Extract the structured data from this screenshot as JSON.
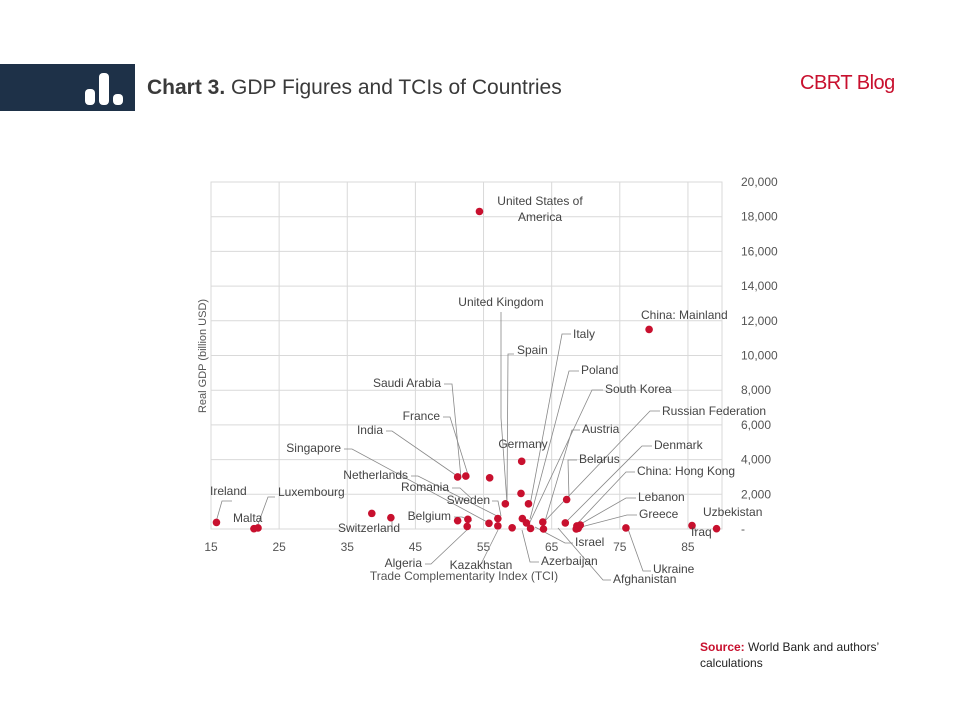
{
  "header": {
    "chart_number": "Chart 3.",
    "title": "GDP Figures and TCIs of Countries",
    "icon": "bar-chart-icon",
    "band_color": "#1e3148"
  },
  "brand": {
    "name": "CBRT Blog",
    "color": "#c8102e"
  },
  "source": {
    "label": "Source:",
    "text": "World Bank and authors’ calculations"
  },
  "chart_data": {
    "type": "scatter",
    "title": "",
    "xlabel": "Trade Complementarity Index (TCI)",
    "ylabel": "Real GDP (billion USD)",
    "xlim": [
      15,
      90
    ],
    "ylim": [
      0,
      20000
    ],
    "x_ticks": [
      "15",
      "25",
      "35",
      "45",
      "55",
      "65",
      "75",
      "85"
    ],
    "y_ticks": [
      "-",
      "2,000",
      "4,000",
      "6,000",
      "8,000",
      "10,000",
      "12,000",
      "14,000",
      "16,000",
      "18,000",
      "20,000"
    ],
    "marker_color": "#c8102e",
    "grid": true,
    "y_axis_side": "right",
    "points": [
      {
        "label": "Ireland",
        "x": 15.8,
        "y": 380
      },
      {
        "label": "Malta",
        "x": 21.3,
        "y": 20
      },
      {
        "label": "Luxembourg",
        "x": 21.9,
        "y": 60
      },
      {
        "label": "Netherlands",
        "x": 38.6,
        "y": 900
      },
      {
        "label": "Switzerland",
        "x": 41.4,
        "y": 650
      },
      {
        "label": "Belgium",
        "x": 51.2,
        "y": 480
      },
      {
        "label": "Saudi Arabia",
        "x": 51.2,
        "y": 3000
      },
      {
        "label": "India",
        "x": 52.4,
        "y": 3050
      },
      {
        "label": "Sweden",
        "x": 52.7,
        "y": 560
      },
      {
        "label": "Algeria",
        "x": 52.6,
        "y": 150
      },
      {
        "label": "United States of America",
        "x": 54.4,
        "y": 18300
      },
      {
        "label": "France",
        "x": 55.9,
        "y": 2950
      },
      {
        "label": "Singapore",
        "x": 55.8,
        "y": 330
      },
      {
        "label": "Kazakhstan",
        "x": 57.1,
        "y": 180
      },
      {
        "label": "Romania",
        "x": 57.1,
        "y": 600
      },
      {
        "label": "United Kingdom",
        "x": 58.2,
        "y": 1450
      },
      {
        "label": "Germany",
        "x": 60.6,
        "y": 3900
      },
      {
        "label": "Spain",
        "x": 60.5,
        "y": 2050
      },
      {
        "label": "Italy",
        "x": 61.6,
        "y": 1450
      },
      {
        "label": "Poland",
        "x": 60.7,
        "y": 600
      },
      {
        "label": "South Korea",
        "x": 61.3,
        "y": 350
      },
      {
        "label": "Israel",
        "x": 59.2,
        "y": 70
      },
      {
        "label": "Azerbaijan",
        "x": 61.9,
        "y": 30
      },
      {
        "label": "Russian Federation",
        "x": 63.7,
        "y": 400
      },
      {
        "label": "Austria",
        "x": 63.8,
        "y": 0
      },
      {
        "label": "Belarus",
        "x": 67.2,
        "y": 1700
      },
      {
        "label": "China: Mainland",
        "x": 79.3,
        "y": 11500
      },
      {
        "label": "Denmark",
        "x": 67.0,
        "y": 350
      },
      {
        "label": "China: Hong Kong",
        "x": 68.7,
        "y": 180
      },
      {
        "label": "Lebanon",
        "x": 69.2,
        "y": 230
      },
      {
        "label": "Greece",
        "x": 68.9,
        "y": 40
      },
      {
        "label": "Ukraine",
        "x": 75.9,
        "y": 60
      },
      {
        "label": "Afghanistan",
        "x": 68.6,
        "y": 0
      },
      {
        "label": "Iraq",
        "x": 85.6,
        "y": 200
      },
      {
        "label": "Uzbekistan",
        "x": 89.2,
        "y": 20
      }
    ],
    "annotations": [
      {
        "label": "Ireland",
        "lx": 210,
        "ly": 495,
        "anchor": "start",
        "pts": [
          [
            232,
            501
          ],
          [
            222,
            501
          ],
          [
            216,
            522
          ]
        ]
      },
      {
        "label": "Malta",
        "lx": 233,
        "ly": 522,
        "anchor": "start",
        "pts": []
      },
      {
        "label": "Luxembourg",
        "lx": 278,
        "ly": 496,
        "anchor": "start",
        "pts": [
          [
            275,
            497
          ],
          [
            268,
            497
          ],
          [
            257,
            527
          ]
        ]
      },
      {
        "label": "United States of",
        "lx": 540,
        "ly": 205,
        "anchor": "middle",
        "pts": []
      },
      {
        "label": "America",
        "lx": 540,
        "ly": 221,
        "anchor": "middle",
        "pts": []
      },
      {
        "label": "United Kingdom",
        "lx": 501,
        "ly": 306,
        "anchor": "middle",
        "pts": [
          [
            501,
            312
          ],
          [
            501,
            418
          ],
          [
            507,
            503
          ]
        ]
      },
      {
        "label": "China: Mainland",
        "lx": 641,
        "ly": 319,
        "anchor": "start",
        "pts": []
      },
      {
        "label": "Italy",
        "lx": 573,
        "ly": 338,
        "anchor": "start",
        "pts": [
          [
            571,
            334
          ],
          [
            562,
            334
          ],
          [
            530,
            505
          ]
        ]
      },
      {
        "label": "Spain",
        "lx": 517,
        "ly": 354,
        "anchor": "start",
        "pts": [
          [
            514,
            354
          ],
          [
            508,
            354
          ],
          [
            507,
            500
          ]
        ]
      },
      {
        "label": "Poland",
        "lx": 581,
        "ly": 374,
        "anchor": "start",
        "pts": [
          [
            579,
            371
          ],
          [
            569,
            371
          ],
          [
            530,
            519
          ]
        ]
      },
      {
        "label": "Saudi Arabia",
        "lx": 441,
        "ly": 387,
        "anchor": "end",
        "pts": [
          [
            444,
            384
          ],
          [
            452,
            384
          ],
          [
            461,
            478
          ]
        ]
      },
      {
        "label": "South Korea",
        "lx": 605,
        "ly": 393,
        "anchor": "start",
        "pts": [
          [
            603,
            390
          ],
          [
            592,
            390
          ],
          [
            530,
            522
          ]
        ]
      },
      {
        "label": "Russian Federation",
        "lx": 662,
        "ly": 415,
        "anchor": "start",
        "pts": [
          [
            660,
            411
          ],
          [
            650,
            411
          ],
          [
            543,
            523
          ]
        ]
      },
      {
        "label": "France",
        "lx": 440,
        "ly": 420,
        "anchor": "end",
        "pts": [
          [
            443,
            417
          ],
          [
            450,
            417
          ],
          [
            469,
            478
          ]
        ]
      },
      {
        "label": "India",
        "lx": 383,
        "ly": 434,
        "anchor": "end",
        "pts": [
          [
            386,
            431
          ],
          [
            392,
            431
          ],
          [
            460,
            478
          ]
        ]
      },
      {
        "label": "Austria",
        "lx": 582,
        "ly": 433,
        "anchor": "start",
        "pts": [
          [
            580,
            430
          ],
          [
            572,
            430
          ],
          [
            543,
            528
          ]
        ]
      },
      {
        "label": "Germany",
        "lx": 523,
        "ly": 448,
        "anchor": "middle",
        "pts": []
      },
      {
        "label": "Denmark",
        "lx": 654,
        "ly": 449,
        "anchor": "start",
        "pts": [
          [
            652,
            446
          ],
          [
            642,
            446
          ],
          [
            566,
            522
          ]
        ]
      },
      {
        "label": "Singapore",
        "lx": 341,
        "ly": 452,
        "anchor": "end",
        "pts": [
          [
            344,
            449
          ],
          [
            352,
            449
          ],
          [
            489,
            523
          ]
        ]
      },
      {
        "label": "Belarus",
        "lx": 579,
        "ly": 463,
        "anchor": "start",
        "pts": [
          [
            577,
            460
          ],
          [
            568,
            460
          ],
          [
            569,
            498
          ]
        ]
      },
      {
        "label": "China: Hong Kong",
        "lx": 637,
        "ly": 475,
        "anchor": "start",
        "pts": [
          [
            635,
            472
          ],
          [
            626,
            472
          ],
          [
            576,
            525
          ]
        ]
      },
      {
        "label": "Netherlands",
        "lx": 408,
        "ly": 479,
        "anchor": "end",
        "pts": [
          [
            411,
            476
          ],
          [
            418,
            476
          ],
          [
            499,
            517
          ]
        ]
      },
      {
        "label": "Romania",
        "lx": 449,
        "ly": 491,
        "anchor": "end",
        "pts": [
          [
            452,
            488
          ],
          [
            460,
            488
          ],
          [
            472,
            499
          ]
        ]
      },
      {
        "label": "Lebanon",
        "lx": 638,
        "ly": 501,
        "anchor": "start",
        "pts": [
          [
            636,
            498
          ],
          [
            626,
            498
          ],
          [
            579,
            525
          ]
        ]
      },
      {
        "label": "Sweden",
        "lx": 490,
        "ly": 504,
        "anchor": "end",
        "pts": [
          [
            492,
            501
          ],
          [
            498,
            501
          ],
          [
            501,
            516
          ]
        ]
      },
      {
        "label": "Greece",
        "lx": 639,
        "ly": 518,
        "anchor": "start",
        "pts": [
          [
            637,
            515
          ],
          [
            627,
            515
          ],
          [
            581,
            527
          ]
        ]
      },
      {
        "label": "Uzbekistan",
        "lx": 703,
        "ly": 516,
        "anchor": "start",
        "pts": []
      },
      {
        "label": "Belgium",
        "lx": 451,
        "ly": 520,
        "anchor": "end",
        "pts": [
          [
            454,
            517
          ],
          [
            462,
            517
          ],
          [
            472,
            521
          ]
        ]
      },
      {
        "label": "Switzerland",
        "lx": 400,
        "ly": 532,
        "anchor": "end",
        "pts": [
          [
            392,
            529
          ],
          [
            392,
            518
          ]
        ]
      },
      {
        "label": "Iraq",
        "lx": 691,
        "ly": 536,
        "anchor": "start",
        "pts": [
          [
            695,
            531
          ],
          [
            695,
            526
          ]
        ]
      },
      {
        "label": "Israel",
        "lx": 575,
        "ly": 546,
        "anchor": "start",
        "pts": [
          [
            573,
            543
          ],
          [
            565,
            543
          ],
          [
            535,
            527
          ]
        ]
      },
      {
        "label": "Azerbaijan",
        "lx": 541,
        "ly": 565,
        "anchor": "start",
        "pts": [
          [
            539,
            562
          ],
          [
            530,
            562
          ],
          [
            522,
            530
          ]
        ]
      },
      {
        "label": "Algeria",
        "lx": 422,
        "ly": 567,
        "anchor": "end",
        "pts": [
          [
            425,
            564
          ],
          [
            431,
            564
          ],
          [
            470,
            527
          ]
        ]
      },
      {
        "label": "Kazakhstan",
        "lx": 481,
        "ly": 569,
        "anchor": "middle",
        "pts": [
          [
            481,
            564
          ],
          [
            498,
            530
          ]
        ]
      },
      {
        "label": "Ukraine",
        "lx": 653,
        "ly": 573,
        "anchor": "start",
        "pts": [
          [
            651,
            571
          ],
          [
            643,
            571
          ],
          [
            628,
            529
          ]
        ]
      },
      {
        "label": "Afghanistan",
        "lx": 613,
        "ly": 583,
        "anchor": "start",
        "pts": [
          [
            611,
            580
          ],
          [
            603,
            580
          ],
          [
            558,
            528
          ]
        ]
      }
    ]
  }
}
